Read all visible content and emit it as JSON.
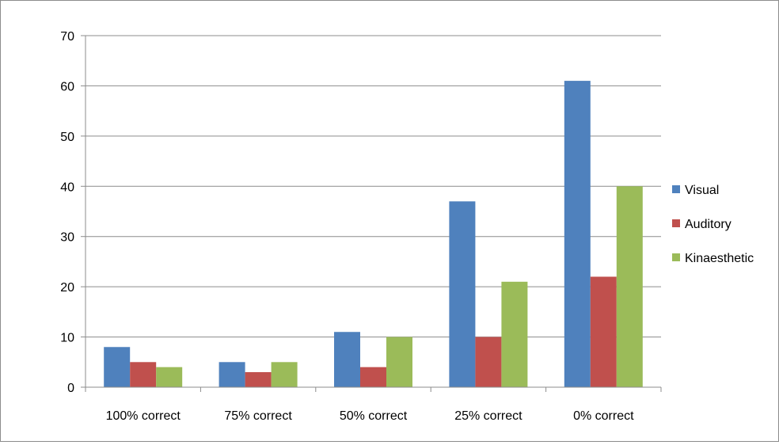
{
  "chart_data": {
    "type": "bar",
    "categories": [
      "100% correct",
      "75% correct",
      "50% correct",
      "25% correct",
      "0% correct"
    ],
    "series": [
      {
        "name": "Visual",
        "values": [
          8,
          5,
          11,
          37,
          61
        ],
        "color": "#4f81bd"
      },
      {
        "name": "Auditory",
        "values": [
          5,
          3,
          4,
          10,
          22
        ],
        "color": "#c0504d"
      },
      {
        "name": "Kinaesthetic",
        "values": [
          4,
          5,
          10,
          21,
          40
        ],
        "color": "#9bbb59"
      }
    ],
    "yticks": [
      0,
      10,
      20,
      30,
      40,
      50,
      60,
      70
    ],
    "ylim": [
      0,
      70
    ],
    "grid": true,
    "legend_position": "right"
  }
}
